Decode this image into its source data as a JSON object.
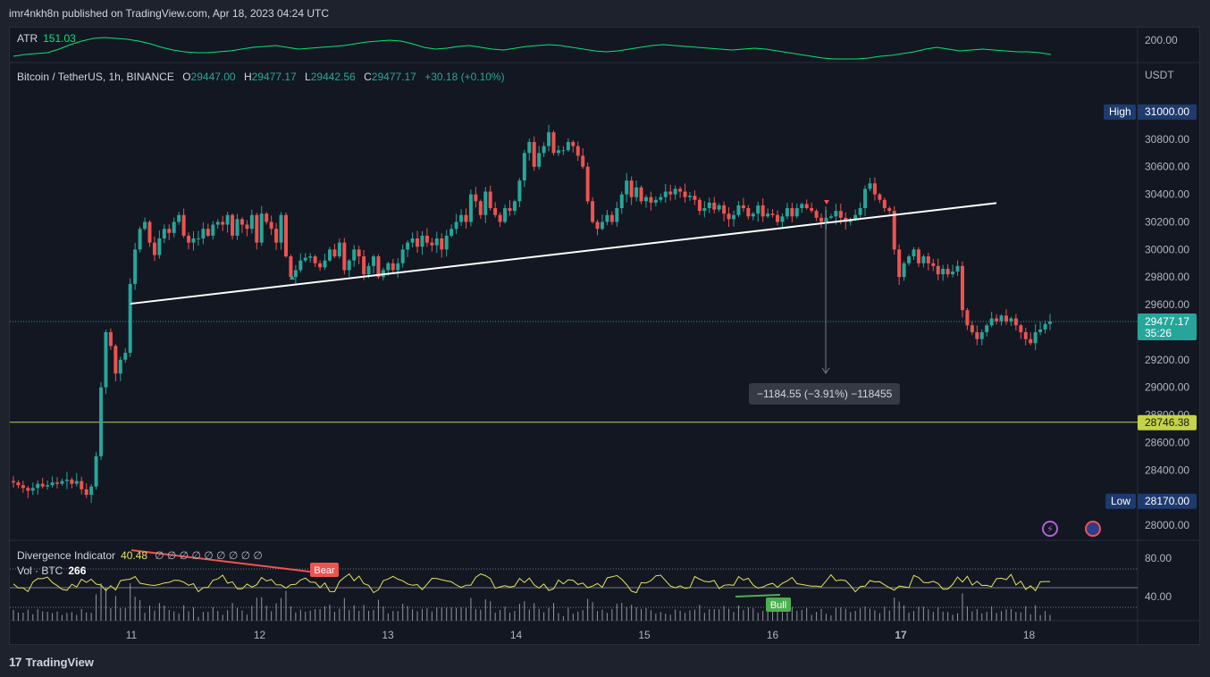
{
  "header": {
    "published": "imr4nkh8n published on TradingView.com, Apr 18, 2023 04:24 UTC"
  },
  "brand": {
    "name": "TradingView",
    "logo_text": "17"
  },
  "legend": {
    "symbol": "Bitcoin / TetherUS, 1h, BINANCE",
    "o_label": "O",
    "o": "29447.00",
    "h_label": "H",
    "h": "29477.17",
    "l_label": "L",
    "l": "29442.56",
    "c_label": "C",
    "c": "29477.17",
    "change": "+30.18 (+0.10%)"
  },
  "atr": {
    "label": "ATR",
    "value": "151.03",
    "axis_tick": "200.00"
  },
  "divergence": {
    "label": "Divergence Indicator",
    "value": "40.48",
    "glyphs": "∅ ∅ ∅ ∅ ∅ ∅ ∅ ∅ ∅",
    "bear_label": "Bear",
    "bull_label": "Bull",
    "ticks": [
      "80.00",
      "40.00"
    ]
  },
  "volume": {
    "label": "Vol · BTC",
    "value": "266"
  },
  "price_axis": {
    "unit": "USDT",
    "ticks": [
      "31000.00",
      "30800.00",
      "30600.00",
      "30400.00",
      "30200.00",
      "30000.00",
      "29800.00",
      "29600.00",
      "29400.00",
      "29200.00",
      "29000.00",
      "28800.00",
      "28600.00",
      "28400.00",
      "28200.00",
      "28000.00"
    ],
    "high_label": "High",
    "high_value": "31000.00",
    "low_label": "Low",
    "low_value": "28170.00",
    "last_price": "29477.17",
    "countdown": "35:26",
    "hline_value": "28746.38"
  },
  "time_axis": {
    "ticks": [
      "11",
      "12",
      "13",
      "14",
      "15",
      "16",
      "17",
      "18"
    ],
    "bold_tick": "17"
  },
  "measure": {
    "text": "−1184.55 (−3.91%) −118455"
  },
  "colors": {
    "up": "#26a69a",
    "down": "#ef5350",
    "background": "#131722",
    "atr": "#00e676",
    "divergence": "#e0e35a",
    "hline": "#c6d346",
    "trendline": "#ffffff",
    "bear": "#ef5350",
    "bull": "#4caf50"
  },
  "chart_data": {
    "type": "candlestick",
    "timeframe": "1h",
    "ylim": [
      28000,
      31200
    ],
    "x_ticks": [
      "11",
      "12",
      "13",
      "14",
      "15",
      "16",
      "17",
      "18"
    ],
    "key_prices": {
      "open": 29447.0,
      "high": 29477.17,
      "low": 29442.56,
      "close": 29477.17,
      "session_high": 31000.0,
      "session_low": 28170.0,
      "hline": 28746.38
    },
    "trendline": [
      {
        "date": "11 00:00",
        "price": 29600
      },
      {
        "date": "18 17:00",
        "price": 30330
      }
    ],
    "closes": [
      28310,
      28290,
      28270,
      28250,
      28270,
      28300,
      28280,
      28290,
      28310,
      28300,
      28320,
      28330,
      28300,
      28320,
      28260,
      28220,
      28280,
      28500,
      29000,
      29400,
      29300,
      29100,
      29200,
      29250,
      29750,
      30000,
      30150,
      30200,
      30050,
      29960,
      30080,
      30150,
      30120,
      30200,
      30250,
      30100,
      30050,
      30080,
      30080,
      30150,
      30100,
      30180,
      30200,
      30180,
      30250,
      30100,
      30220,
      30180,
      30150,
      30250,
      30050,
      30260,
      30200,
      30150,
      30050,
      30250,
      29950,
      29800,
      29850,
      29920,
      29940,
      29950,
      29900,
      29870,
      29920,
      30000,
      29950,
      30050,
      29850,
      29920,
      30000,
      29950,
      29820,
      29880,
      29950,
      29800,
      29850,
      29900,
      29850,
      29900,
      30000,
      30050,
      30080,
      30020,
      30100,
      30050,
      30030,
      30080,
      30000,
      30100,
      30150,
      30200,
      30250,
      30200,
      30400,
      30350,
      30250,
      30420,
      30300,
      30250,
      30200,
      30300,
      30280,
      30350,
      30500,
      30700,
      30780,
      30600,
      30700,
      30750,
      30850,
      30700,
      30720,
      30720,
      30780,
      30750,
      30680,
      30600,
      30350,
      30200,
      30150,
      30200,
      30250,
      30200,
      30300,
      30400,
      30500,
      30380,
      30450,
      30350,
      30380,
      30340,
      30360,
      30380,
      30420,
      30400,
      30440,
      30420,
      30380,
      30390,
      30360,
      30280,
      30300,
      30340,
      30290,
      30320,
      30260,
      30220,
      30250,
      30320,
      30300,
      30240,
      30260,
      30320,
      30240,
      30260,
      30250,
      30200,
      30240,
      30300,
      30240,
      30300,
      30330,
      30300,
      30280,
      30230,
      30200,
      30230,
      30240,
      30280,
      30230,
      30200,
      30220,
      30250,
      30300,
      30440,
      30480,
      30400,
      30360,
      30300,
      30280,
      30000,
      29800,
      29900,
      29950,
      30000,
      29900,
      29950,
      29900,
      29880,
      29820,
      29860,
      29820,
      29840,
      29880,
      29560,
      29450,
      29400,
      29350,
      29400,
      29450,
      29500,
      29480,
      29520,
      29480,
      29500,
      29450,
      29400,
      29350,
      29320,
      29400,
      29420,
      29460,
      29477
    ]
  }
}
